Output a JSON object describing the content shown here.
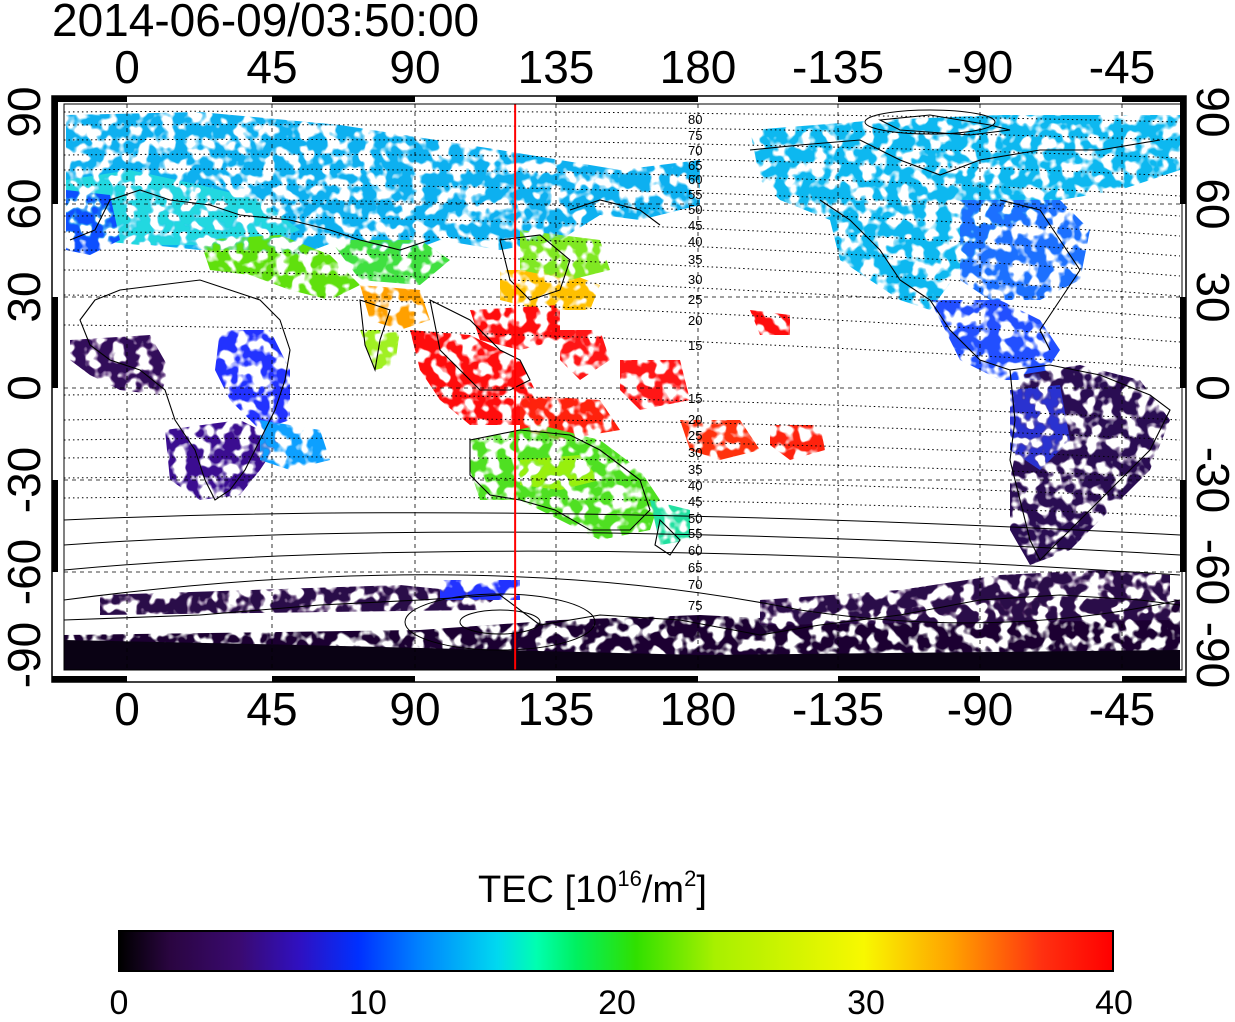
{
  "timestamp": "2014-06-09/03:50:00",
  "lon_ticks": [
    "0",
    "45",
    "90",
    "135",
    "180",
    "-135",
    "-90",
    "-45"
  ],
  "lat_ticks": [
    "90",
    "60",
    "30",
    "0",
    "-30",
    "-60",
    "-90"
  ],
  "colorbar": {
    "title_prefix": "TEC  [10",
    "title_exp1": "16",
    "title_mid": "/m",
    "title_exp2": "2",
    "title_suffix": "]",
    "ticks": [
      "0",
      "10",
      "20",
      "30",
      "40"
    ],
    "range": [
      0,
      40
    ]
  },
  "contour_labels": [
    "80",
    "75",
    "70",
    "65",
    "60",
    "55",
    "50",
    "45",
    "40",
    "35",
    "30",
    "25",
    "20",
    "15",
    "15",
    "20",
    "25",
    "30",
    "35",
    "40",
    "45",
    "50",
    "55",
    "60",
    "65",
    "70",
    "75"
  ],
  "terminator_longitude": 123,
  "colors": {
    "terminator": "#ff0000",
    "frame": "#000000",
    "grid": "#000000"
  }
}
